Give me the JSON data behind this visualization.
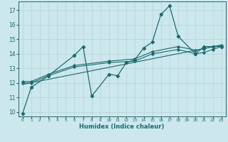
{
  "title": "",
  "xlabel": "Humidex (Indice chaleur)",
  "ylabel": "",
  "bg_color": "#cce8ec",
  "grid_color": "#aed4d8",
  "line_color": "#1a6b6e",
  "xlim": [
    -0.5,
    23.5
  ],
  "ylim": [
    9.7,
    17.6
  ],
  "yticks": [
    10,
    11,
    12,
    13,
    14,
    15,
    16,
    17
  ],
  "xticks": [
    0,
    1,
    2,
    3,
    4,
    5,
    6,
    7,
    8,
    9,
    10,
    11,
    12,
    13,
    14,
    15,
    16,
    17,
    18,
    19,
    20,
    21,
    22,
    23
  ],
  "series": [
    {
      "x": [
        0,
        1,
        3,
        6,
        7,
        8,
        10,
        11,
        12,
        13,
        14,
        15,
        16,
        17,
        18,
        20,
        21,
        22,
        23
      ],
      "y": [
        9.9,
        11.7,
        12.5,
        13.9,
        14.5,
        11.1,
        12.6,
        12.5,
        13.4,
        13.6,
        14.4,
        14.8,
        16.7,
        17.3,
        15.2,
        14.0,
        14.5,
        14.5,
        14.5
      ]
    },
    {
      "x": [
        0,
        1,
        3,
        6,
        10,
        13,
        15,
        18,
        20,
        21,
        22,
        23
      ],
      "y": [
        12.0,
        12.0,
        12.5,
        13.1,
        13.4,
        13.5,
        14.0,
        14.3,
        14.0,
        14.1,
        14.3,
        14.5
      ]
    },
    {
      "x": [
        0,
        1,
        3,
        6,
        10,
        13,
        15,
        18,
        20,
        21,
        22,
        23
      ],
      "y": [
        12.1,
        12.1,
        12.6,
        13.2,
        13.5,
        13.65,
        14.15,
        14.5,
        14.25,
        14.35,
        14.5,
        14.6
      ]
    },
    {
      "x": [
        0,
        23
      ],
      "y": [
        11.9,
        14.6
      ]
    }
  ]
}
